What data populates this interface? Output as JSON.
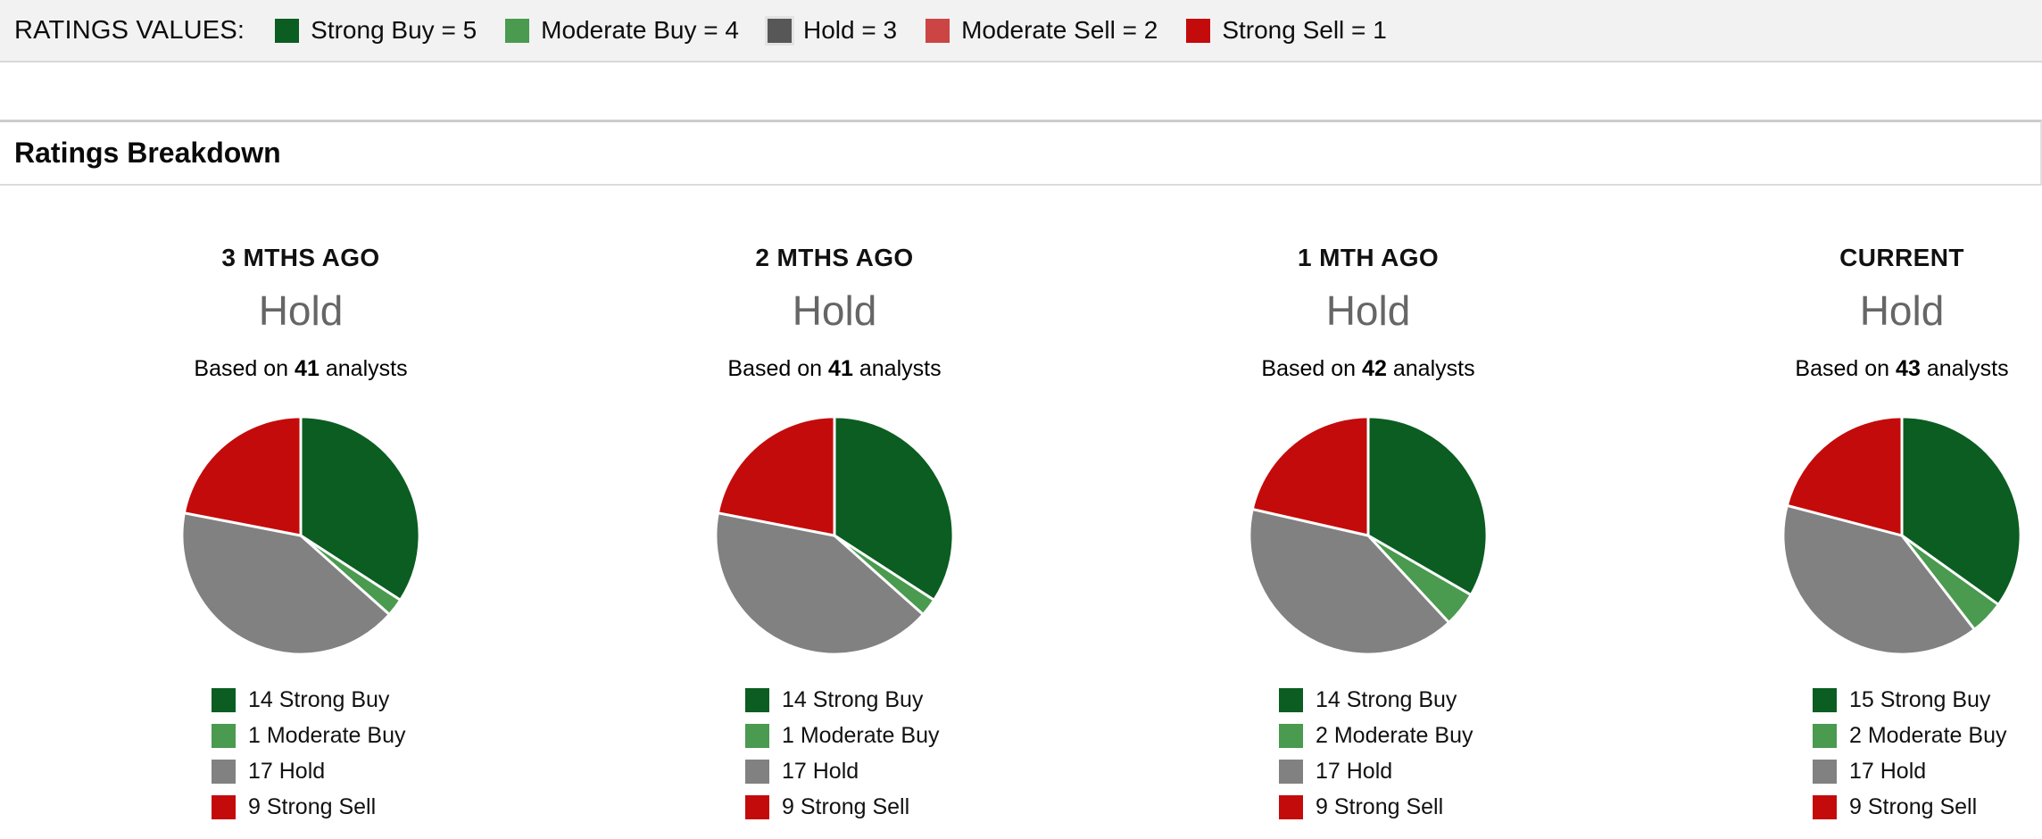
{
  "ratings_values_bar": {
    "label": "RATINGS VALUES:",
    "items": [
      {
        "label": "Strong Buy = 5",
        "color": "#0b5d21"
      },
      {
        "label": "Moderate Buy = 4",
        "color": "#4a9a4f"
      },
      {
        "label": "Hold = 3",
        "color": "#575757"
      },
      {
        "label": "Moderate Sell = 2",
        "color": "#cc4545"
      },
      {
        "label": "Strong Sell = 1",
        "color": "#c40b0b"
      }
    ]
  },
  "section_title": "Ratings Breakdown",
  "chart_data": [
    {
      "type": "pie",
      "period": "3 MTHS AGO",
      "consensus": "Hold",
      "based_on": {
        "prefix": "Based on",
        "count": "41",
        "suffix": "analysts"
      },
      "categories": [
        "Strong Buy",
        "Moderate Buy",
        "Hold",
        "Strong Sell"
      ],
      "values": [
        14,
        1,
        17,
        9
      ],
      "colors": [
        "#0b5d21",
        "#4a9a4f",
        "#818181",
        "#c40b0b"
      ],
      "legend": [
        {
          "text": "14 Strong Buy",
          "color": "#0b5d21"
        },
        {
          "text": "1 Moderate Buy",
          "color": "#4a9a4f"
        },
        {
          "text": "17 Hold",
          "color": "#818181"
        },
        {
          "text": "9 Strong Sell",
          "color": "#c40b0b"
        }
      ]
    },
    {
      "type": "pie",
      "period": "2 MTHS AGO",
      "consensus": "Hold",
      "based_on": {
        "prefix": "Based on",
        "count": "41",
        "suffix": "analysts"
      },
      "categories": [
        "Strong Buy",
        "Moderate Buy",
        "Hold",
        "Strong Sell"
      ],
      "values": [
        14,
        1,
        17,
        9
      ],
      "colors": [
        "#0b5d21",
        "#4a9a4f",
        "#818181",
        "#c40b0b"
      ],
      "legend": [
        {
          "text": "14 Strong Buy",
          "color": "#0b5d21"
        },
        {
          "text": "1 Moderate Buy",
          "color": "#4a9a4f"
        },
        {
          "text": "17 Hold",
          "color": "#818181"
        },
        {
          "text": "9 Strong Sell",
          "color": "#c40b0b"
        }
      ]
    },
    {
      "type": "pie",
      "period": "1 MTH AGO",
      "consensus": "Hold",
      "based_on": {
        "prefix": "Based on",
        "count": "42",
        "suffix": "analysts"
      },
      "categories": [
        "Strong Buy",
        "Moderate Buy",
        "Hold",
        "Strong Sell"
      ],
      "values": [
        14,
        2,
        17,
        9
      ],
      "colors": [
        "#0b5d21",
        "#4a9a4f",
        "#818181",
        "#c40b0b"
      ],
      "legend": [
        {
          "text": "14 Strong Buy",
          "color": "#0b5d21"
        },
        {
          "text": "2 Moderate Buy",
          "color": "#4a9a4f"
        },
        {
          "text": "17 Hold",
          "color": "#818181"
        },
        {
          "text": "9 Strong Sell",
          "color": "#c40b0b"
        }
      ]
    },
    {
      "type": "pie",
      "period": "CURRENT",
      "consensus": "Hold",
      "based_on": {
        "prefix": "Based on",
        "count": "43",
        "suffix": "analysts"
      },
      "categories": [
        "Strong Buy",
        "Moderate Buy",
        "Hold",
        "Strong Sell"
      ],
      "values": [
        15,
        2,
        17,
        9
      ],
      "colors": [
        "#0b5d21",
        "#4a9a4f",
        "#818181",
        "#c40b0b"
      ],
      "legend": [
        {
          "text": "15 Strong Buy",
          "color": "#0b5d21"
        },
        {
          "text": "2 Moderate Buy",
          "color": "#4a9a4f"
        },
        {
          "text": "17 Hold",
          "color": "#818181"
        },
        {
          "text": "9 Strong Sell",
          "color": "#c40b0b"
        }
      ]
    }
  ]
}
